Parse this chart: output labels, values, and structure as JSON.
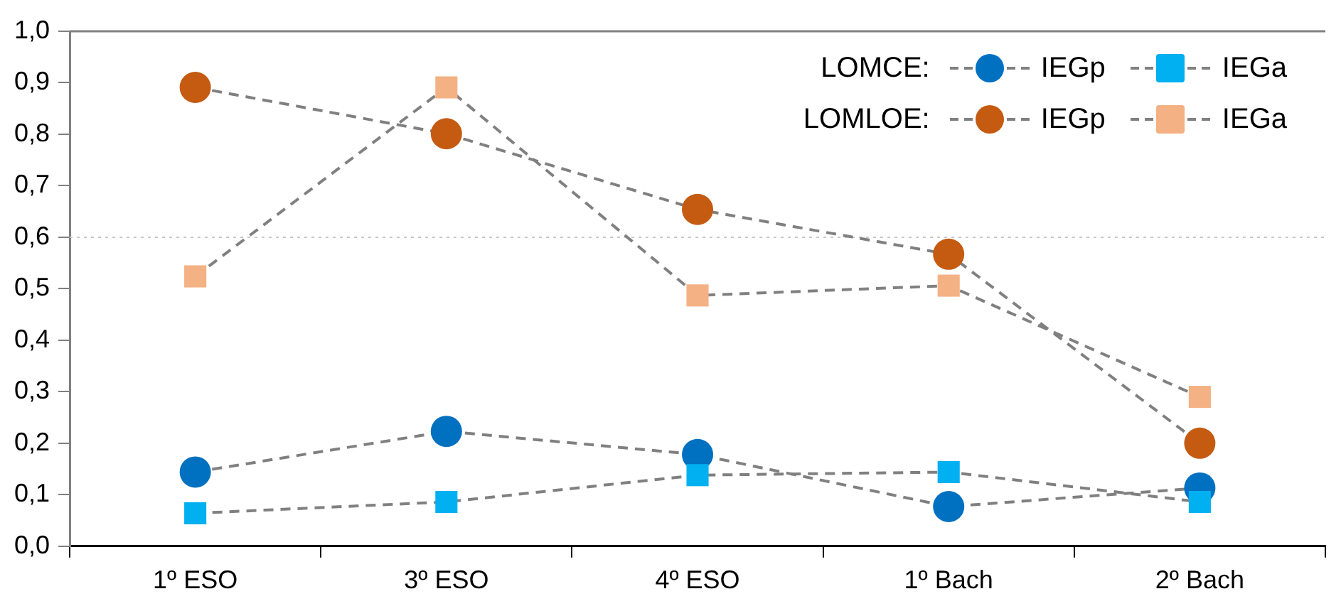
{
  "chart_data": {
    "type": "line",
    "categories": [
      "1º ESO",
      "3º ESO",
      "4º ESO",
      "1º Bach",
      "2º Bach"
    ],
    "series": [
      {
        "name": "IEGp",
        "color": "#0070c0",
        "marker": "circle",
        "values": [
          0.144,
          0.223,
          0.178,
          0.077,
          0.113
        ]
      },
      {
        "name": "IEGa",
        "color": "#00b0f0",
        "marker": "square",
        "values": [
          0.064,
          0.086,
          0.138,
          0.144,
          0.086
        ]
      },
      {
        "name": "IEGp",
        "color": "#c55a11",
        "marker": "circle",
        "values": [
          0.891,
          0.801,
          0.654,
          0.567,
          0.2
        ]
      },
      {
        "name": "IEGa",
        "color": "#f4b183",
        "marker": "square",
        "values": [
          0.524,
          0.891,
          0.487,
          0.506,
          0.29
        ]
      }
    ],
    "annotations": [
      "LOMCE:",
      "LOMLOE:"
    ],
    "ylim": [
      0,
      1
    ],
    "yticks": [
      {
        "value": 0,
        "label": "0,0"
      },
      {
        "value": 0.1,
        "label": "0,1"
      },
      {
        "value": 0.2,
        "label": "0,2"
      },
      {
        "value": 0.3,
        "label": "0,3"
      },
      {
        "value": 0.4,
        "label": "0,4"
      },
      {
        "value": 0.5,
        "label": "0,5"
      },
      {
        "value": 0.6,
        "label": "0,6"
      },
      {
        "value": 0.7,
        "label": "0,7"
      },
      {
        "value": 0.8,
        "label": "0,8"
      },
      {
        "value": 0.9,
        "label": "0,9"
      },
      {
        "value": 1,
        "label": "1,0"
      }
    ],
    "ref_lines": [
      {
        "axis": "y",
        "value": 0.6,
        "color": "#c8c8c8",
        "line_style": "dotted"
      }
    ],
    "line_style": "dashed",
    "grid": false,
    "legend": "top right"
  }
}
